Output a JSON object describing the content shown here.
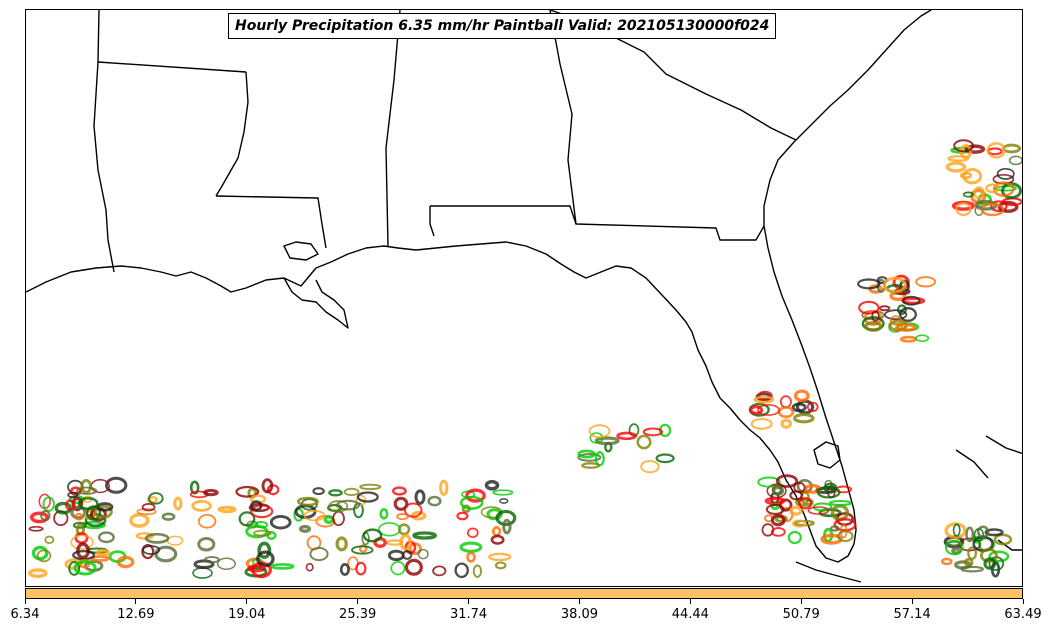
{
  "title": "Hourly Precipitation 6.35 mm/hr Paintball Valid: 202105130000f024",
  "colorbar": {
    "color": "#ffc266",
    "ticks": [
      "6.34",
      "12.69",
      "19.04",
      "25.39",
      "31.74",
      "38.09",
      "44.44",
      "50.79",
      "57.14",
      "63.49"
    ]
  },
  "map": {
    "land_color": "#ffffff",
    "border_color": "#000000",
    "region": "US Gulf Coast and Florida"
  },
  "member_colors": [
    "#ff0000",
    "#ff6a00",
    "#ffa31a",
    "#00cc00",
    "#006600",
    "#8b0000",
    "#808000",
    "#222222",
    "#556b2f"
  ]
}
